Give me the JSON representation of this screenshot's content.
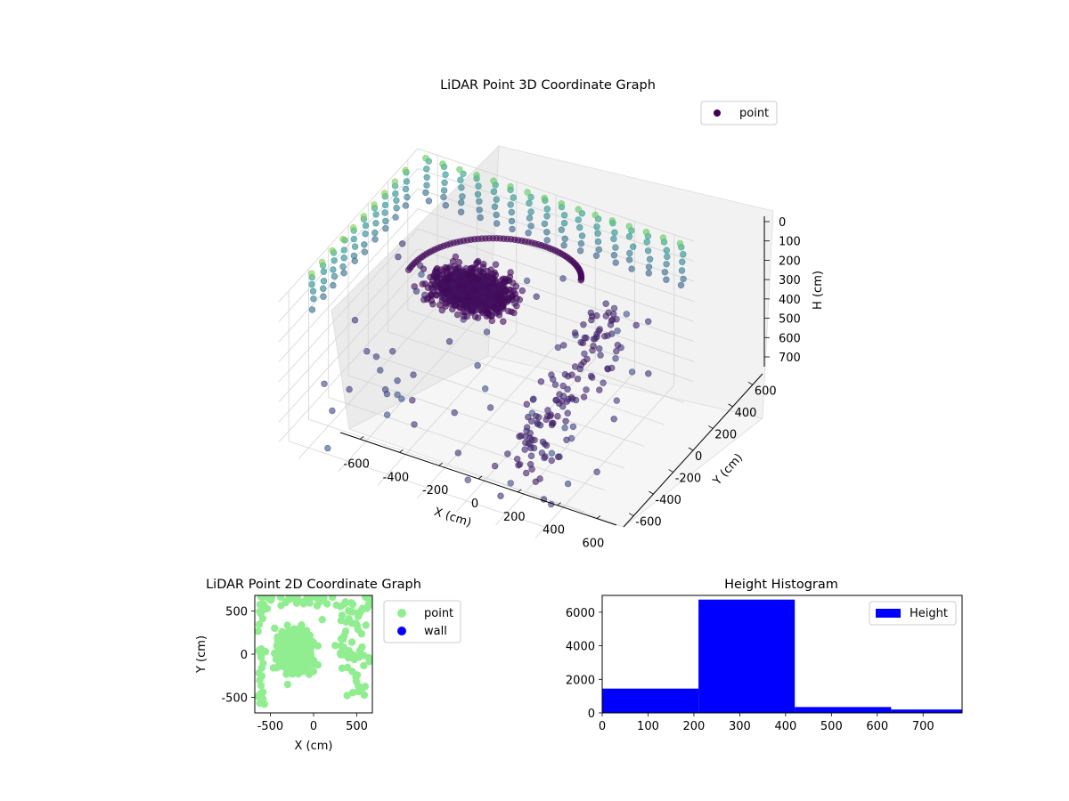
{
  "chart_data": [
    {
      "type": "scatter",
      "projection": "3d",
      "title": "LiDAR Point 3D Coordinate Graph",
      "xlabel": "X (cm)",
      "ylabel": "Y (cm)",
      "zlabel": "H (cm)",
      "xlim": [
        -700,
        700
      ],
      "ylim": [
        -700,
        700
      ],
      "zlim": [
        0,
        750
      ],
      "zaxis_inverted": true,
      "xticks": [
        -600,
        -400,
        -200,
        0,
        200,
        400,
        600
      ],
      "yticks": [
        -600,
        -400,
        -200,
        0,
        200,
        400,
        600
      ],
      "zticks": [
        0,
        100,
        200,
        300,
        400,
        500,
        600,
        700
      ],
      "grid": true,
      "legend": {
        "position": "top-right",
        "entries": [
          "point"
        ]
      },
      "colormap": "viridis",
      "series": [
        {
          "name": "point",
          "legend_color": "#440154",
          "description_of_shape": "dense vehicle-shaped cluster, arc and scattered wall posts",
          "approx_points": [
            {
              "x": -150,
              "y": 300,
              "h": 280
            },
            {
              "x": 0,
              "y": 300,
              "h": 300
            },
            {
              "x": 150,
              "y": 300,
              "h": 300
            },
            {
              "x": -300,
              "y": 200,
              "h": 200
            },
            {
              "x": -450,
              "y": 100,
              "h": 120
            },
            {
              "x": -500,
              "y": 0,
              "h": 100
            },
            {
              "x": -100,
              "y": 500,
              "h": 120
            },
            {
              "x": 200,
              "y": 550,
              "h": 110
            },
            {
              "x": 450,
              "y": 300,
              "h": 300
            },
            {
              "x": 500,
              "y": 100,
              "h": 400
            },
            {
              "x": 550,
              "y": -100,
              "h": 450
            },
            {
              "x": 600,
              "y": -300,
              "h": 500
            }
          ]
        }
      ]
    },
    {
      "type": "scatter",
      "title": "LiDAR Point 2D Coordinate Graph",
      "xlabel": "X (cm)",
      "ylabel": "Y (cm)",
      "xlim": [
        -680,
        680
      ],
      "ylim": [
        -680,
        680
      ],
      "xticks": [
        -500,
        0,
        500
      ],
      "yticks": [
        -500,
        0,
        500
      ],
      "legend": {
        "position": "outside-right",
        "entries": [
          "point",
          "wall"
        ]
      },
      "series": [
        {
          "name": "point",
          "color": "#90ee90",
          "approx_points": [
            {
              "x": -250,
              "y": 0
            },
            {
              "x": -100,
              "y": 200
            },
            {
              "x": 0,
              "y": -200
            },
            {
              "x": -300,
              "y": -350
            },
            {
              "x": 100,
              "y": 400
            },
            {
              "x": 250,
              "y": 100
            },
            {
              "x": -450,
              "y": 300
            },
            {
              "x": 550,
              "y": 500
            },
            {
              "x": 550,
              "y": -400
            },
            {
              "x": -600,
              "y": 500
            }
          ]
        },
        {
          "name": "wall",
          "color": "#0000ff",
          "approx_points": []
        }
      ]
    },
    {
      "type": "bar",
      "title": "Height Histogram",
      "xlabel": "",
      "ylabel": "",
      "xlim": [
        0,
        785
      ],
      "ylim": [
        0,
        7000
      ],
      "xticks": [
        0,
        100,
        200,
        300,
        400,
        500,
        600,
        700
      ],
      "yticks": [
        0,
        2000,
        4000,
        6000
      ],
      "legend": {
        "position": "top-right",
        "entries": [
          "Height"
        ]
      },
      "series": [
        {
          "name": "Height",
          "color": "#0000ff",
          "bins": [
            {
              "start": 0,
              "end": 210,
              "count": 1450
            },
            {
              "start": 210,
              "end": 420,
              "count": 6750
            },
            {
              "start": 420,
              "end": 630,
              "count": 350
            },
            {
              "start": 630,
              "end": 785,
              "count": 200
            }
          ]
        }
      ]
    }
  ]
}
